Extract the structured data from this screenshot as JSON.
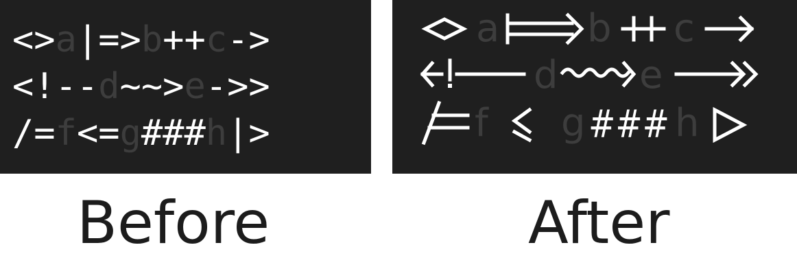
{
  "before": {
    "label": "Before",
    "lines": [
      [
        {
          "t": "<>",
          "dim": false
        },
        {
          "t": "a",
          "dim": true
        },
        {
          "t": "|=>",
          "dim": false
        },
        {
          "t": "b",
          "dim": true
        },
        {
          "t": "++",
          "dim": false
        },
        {
          "t": "c",
          "dim": true
        },
        {
          "t": "->",
          "dim": false
        }
      ],
      [
        {
          "t": "<!--",
          "dim": false
        },
        {
          "t": "d",
          "dim": true
        },
        {
          "t": "~~>",
          "dim": false
        },
        {
          "t": "e",
          "dim": true
        },
        {
          "t": "->>",
          "dim": false
        }
      ],
      [
        {
          "t": "/=",
          "dim": false
        },
        {
          "t": "f",
          "dim": true
        },
        {
          "t": "<=",
          "dim": false
        },
        {
          "t": "g",
          "dim": true
        },
        {
          "t": "###",
          "dim": false
        },
        {
          "t": "h",
          "dim": true
        },
        {
          "t": "|>",
          "dim": false
        }
      ]
    ]
  },
  "after": {
    "label": "After",
    "letters": {
      "a": "a",
      "b": "b",
      "c": "c",
      "d": "d",
      "e": "e",
      "f": "f",
      "g": "g",
      "h": "h"
    },
    "hashes": "###"
  },
  "colors": {
    "panel_bg": "#1f1f1f",
    "glyph": "#ffffff",
    "dim_letter": "#3d3d3d",
    "caption": "#1c1c1c"
  }
}
